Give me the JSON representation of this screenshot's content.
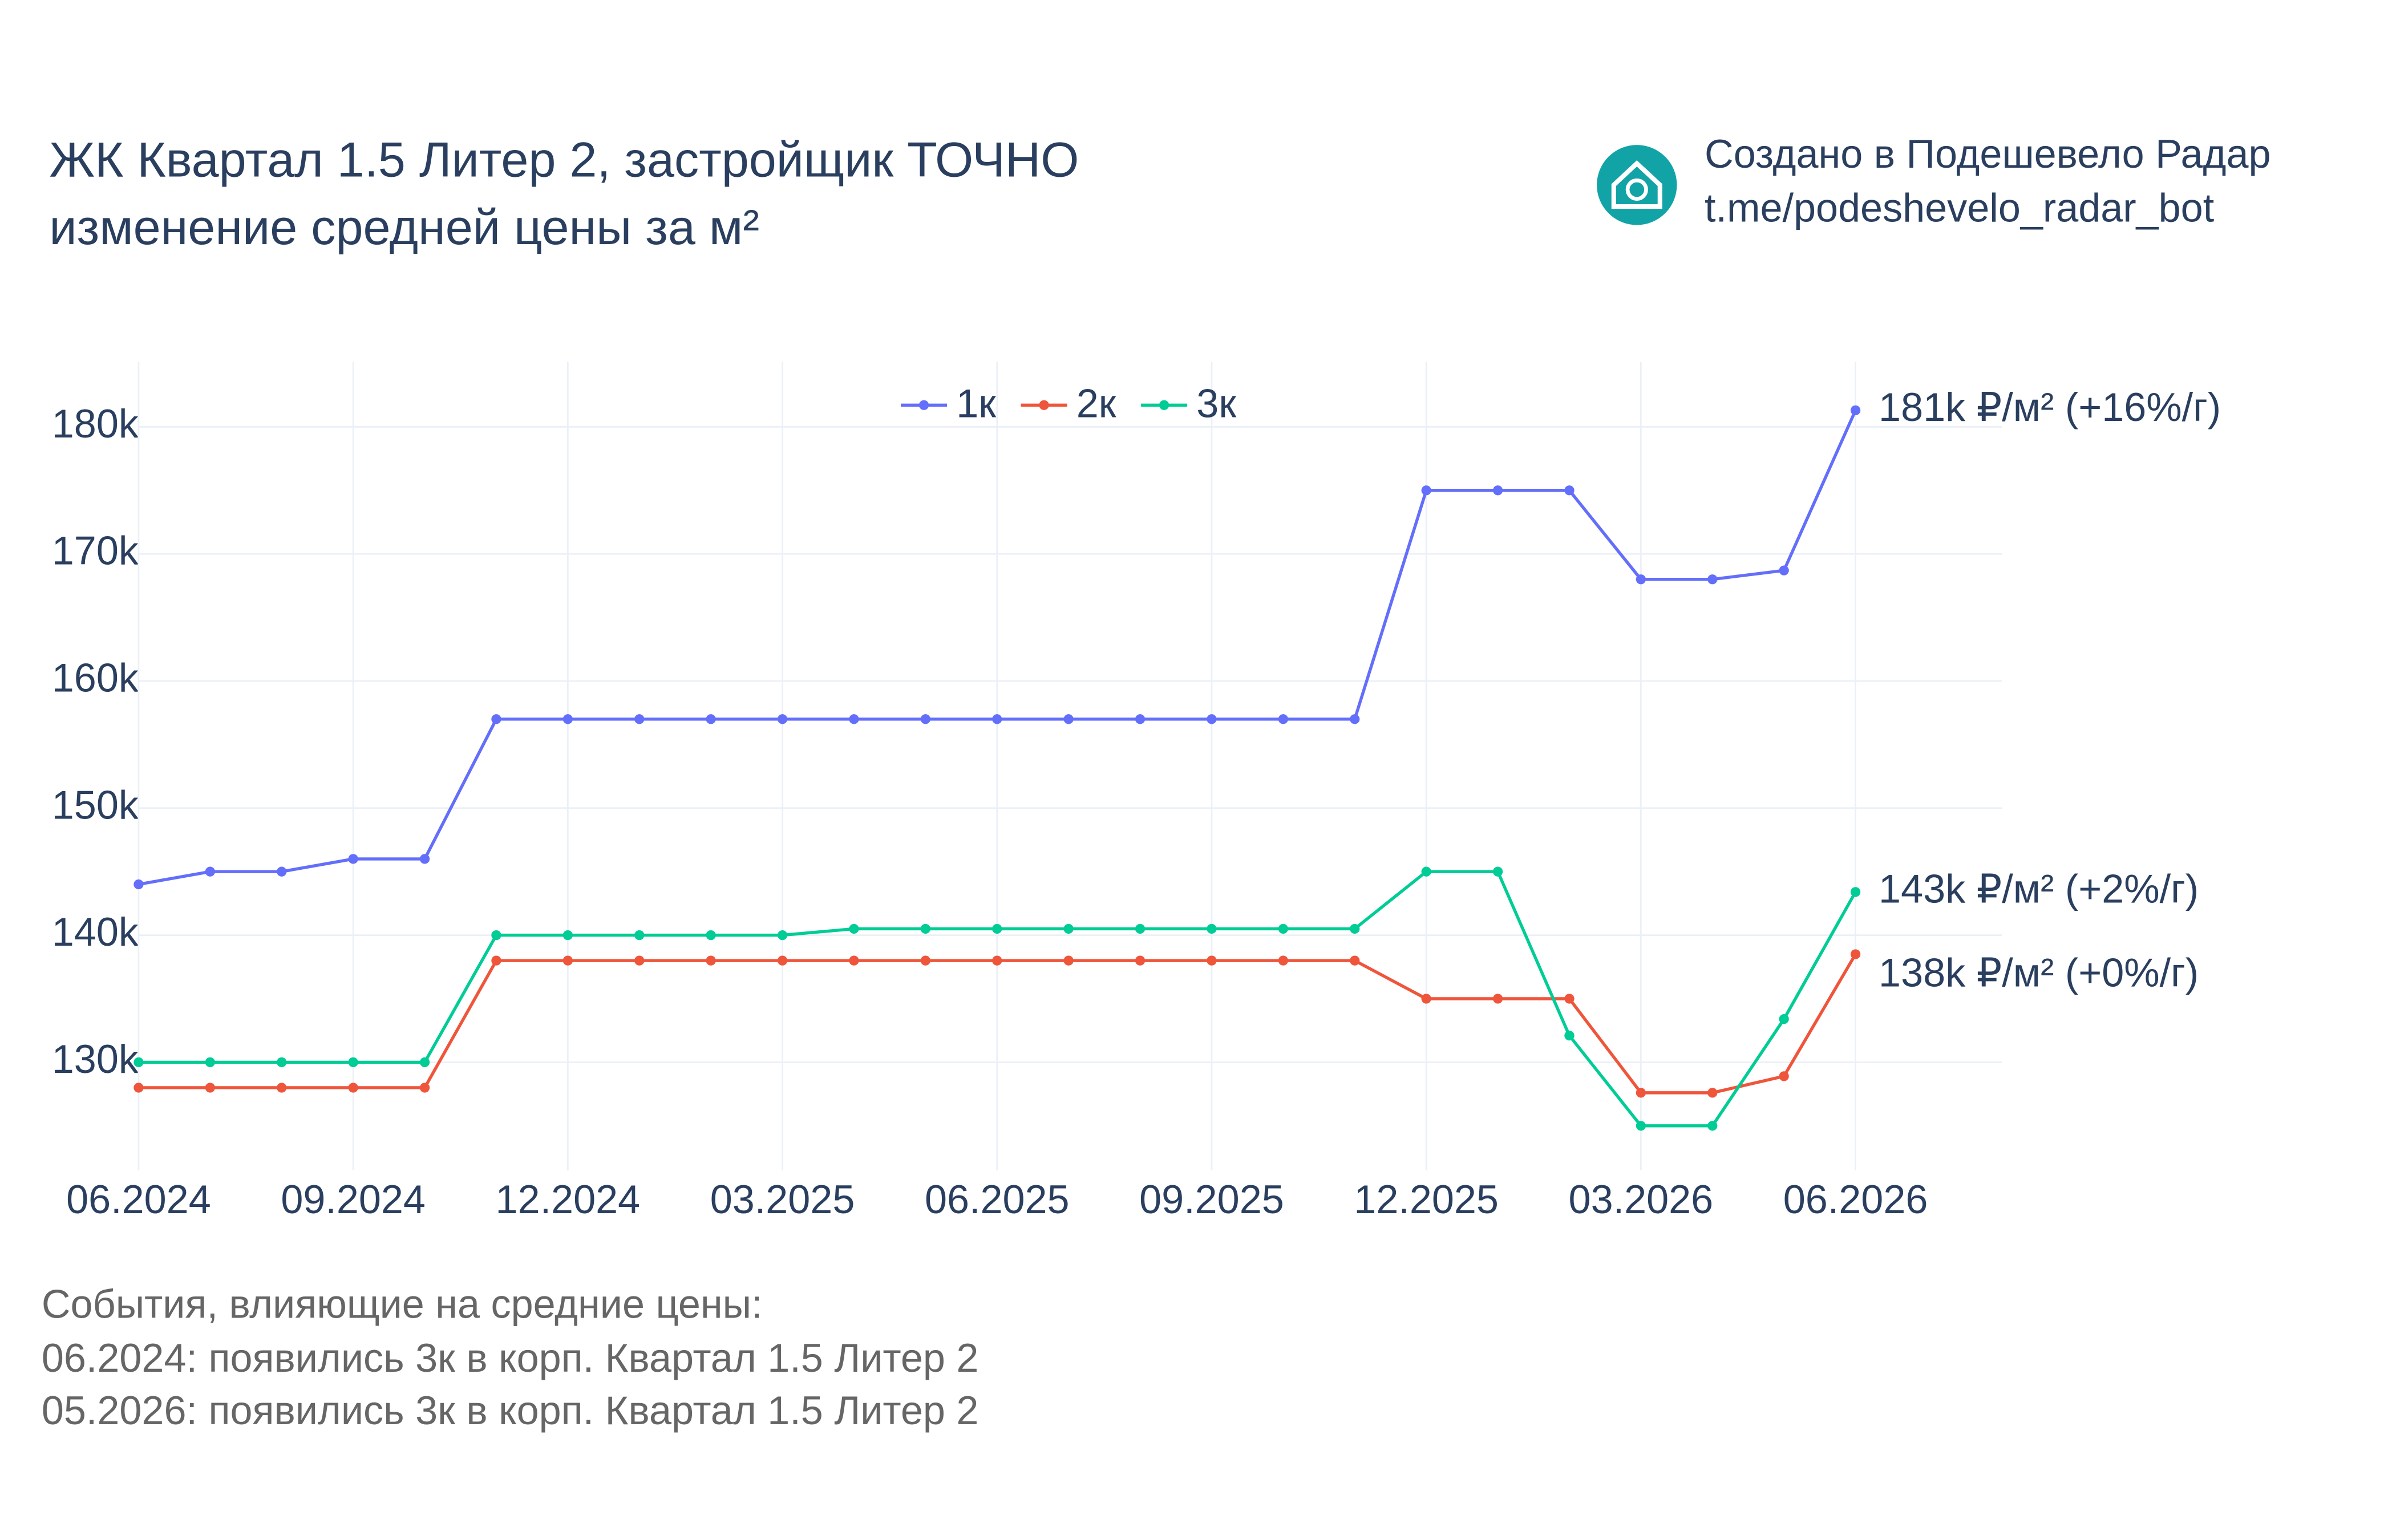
{
  "chart_data": {
    "type": "line",
    "title": [
      "ЖК Квартал 1.5 Литер 2, застройщик ТОЧНО",
      "изменение средней цены за м²"
    ],
    "branding": [
      "Создано в Подешевело Радар",
      "t.me/podeshevelo_radar_bot"
    ],
    "notes": [
      "События, влияющие на средние цены:",
      "06.2024: появились 3к в корп. Квартал 1.5 Литер 2",
      "05.2026: появились 3к в корп. Квартал 1.5 Литер 2"
    ],
    "x": [
      "06.2024",
      "07.2024",
      "08.2024",
      "09.2024",
      "10.2024",
      "11.2024",
      "12.2024",
      "01.2025",
      "02.2025",
      "03.2025",
      "04.2025",
      "05.2025",
      "06.2025",
      "07.2025",
      "08.2025",
      "09.2025",
      "10.2025",
      "11.2025",
      "12.2025",
      "01.2026",
      "02.2026",
      "03.2026",
      "04.2026",
      "05.2026",
      "06.2026"
    ],
    "xticks": [
      "06.2024",
      "09.2024",
      "12.2024",
      "03.2025",
      "06.2025",
      "09.2025",
      "12.2025",
      "03.2026",
      "06.2026"
    ],
    "ylim": [
      121500,
      185100
    ],
    "yticks": [
      {
        "value": 130000,
        "label": "130k"
      },
      {
        "value": 140000,
        "label": "140k"
      },
      {
        "value": 150000,
        "label": "150k"
      },
      {
        "value": 160000,
        "label": "160k"
      },
      {
        "value": 170000,
        "label": "170k"
      },
      {
        "value": 180000,
        "label": "180k"
      }
    ],
    "grid": true,
    "legend": "top",
    "series": [
      {
        "name": "1к",
        "color": "#636efa",
        "end_label": "181k ₽/м² (+16%/г)",
        "values": [
          144000,
          145000,
          145000,
          146000,
          146000,
          157000,
          157000,
          157000,
          157000,
          157000,
          157000,
          157000,
          157000,
          157000,
          157000,
          157000,
          157000,
          157000,
          175000,
          175000,
          175000,
          168000,
          168000,
          168700,
          181300
        ]
      },
      {
        "name": "2к",
        "color": "#ef553b",
        "end_label": "138k ₽/м² (+0%/г)",
        "values": [
          128000,
          128000,
          128000,
          128000,
          128000,
          138000,
          138000,
          138000,
          138000,
          138000,
          138000,
          138000,
          138000,
          138000,
          138000,
          138000,
          138000,
          138000,
          135000,
          135000,
          135000,
          127600,
          127600,
          128900,
          138500
        ]
      },
      {
        "name": "3к",
        "color": "#00cc96",
        "end_label": "143k ₽/м² (+2%/г)",
        "values": [
          130000,
          130000,
          130000,
          130000,
          130000,
          140000,
          140000,
          140000,
          140000,
          140000,
          140500,
          140500,
          140500,
          140500,
          140500,
          140500,
          140500,
          140500,
          145000,
          145000,
          132100,
          125000,
          125000,
          133400,
          143400
        ]
      }
    ]
  }
}
